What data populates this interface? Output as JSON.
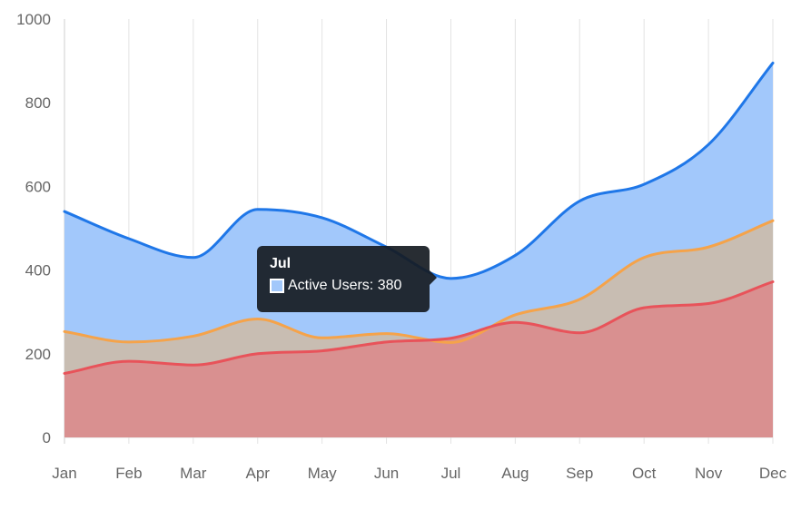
{
  "chart_data": {
    "type": "area",
    "categories": [
      "Jan",
      "Feb",
      "Mar",
      "Apr",
      "May",
      "Jun",
      "Jul",
      "Aug",
      "Sep",
      "Oct",
      "Nov",
      "Dec"
    ],
    "ylim": [
      0,
      1000
    ],
    "yticks": [
      0,
      200,
      400,
      600,
      800,
      1000
    ],
    "grid": "vertical",
    "series": [
      {
        "name": "Active Users",
        "color": "#1f77e8",
        "fill": "#a2c8fb",
        "values": [
          540,
          475,
          430,
          545,
          525,
          455,
          380,
          435,
          565,
          605,
          700,
          895
        ]
      },
      {
        "color": "#f5a34a",
        "fill": "#c8bdb2",
        "values": [
          253,
          228,
          242,
          283,
          238,
          248,
          227,
          293,
          330,
          430,
          455,
          518
        ]
      },
      {
        "color": "#e8535a",
        "fill": "#d99090",
        "values": [
          153,
          182,
          173,
          200,
          207,
          228,
          237,
          275,
          250,
          310,
          320,
          372
        ]
      }
    ]
  },
  "tooltip": {
    "title": "Jul",
    "label": "Active Users: 380",
    "swatch_color": "#a2c8fb",
    "swatch_border": "#ffffff"
  }
}
